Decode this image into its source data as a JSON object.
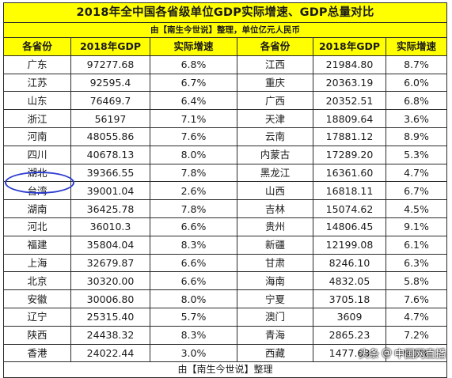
{
  "title": "2018年全中国各省级单位GDP实际增速、GDP总量对比",
  "subtitle": "由【南生今世说】整理，单位亿元人民币",
  "headers": [
    "各省份",
    "2018年GDP",
    "实际增速",
    "各省份",
    "2018年GDP",
    "实际增速"
  ],
  "rows": [
    [
      "广东",
      "97277.68",
      "6.8%",
      "江西",
      "21984.80",
      "8.7%"
    ],
    [
      "江苏",
      "92595.4",
      "6.7%",
      "重庆",
      "20363.19",
      "6.0%"
    ],
    [
      "山东",
      "76469.7",
      "6.4%",
      "广西",
      "20352.51",
      "6.8%"
    ],
    [
      "浙江",
      "56197",
      "7.1%",
      "天津",
      "18809.64",
      "3.6%"
    ],
    [
      "河南",
      "48055.86",
      "7.6%",
      "云南",
      "17881.12",
      "8.9%"
    ],
    [
      "四川",
      "40678.13",
      "8.0%",
      "内蒙古",
      "17289.20",
      "5.3%"
    ],
    [
      "湖北",
      "39366.55",
      "7.8%",
      "黑龙江",
      "16361.60",
      "4.7%"
    ],
    [
      "台湾",
      "39001.04",
      "2.6%",
      "山西",
      "16818.11",
      "6.7%"
    ],
    [
      "湖南",
      "36425.78",
      "7.8%",
      "吉林",
      "15074.62",
      "4.5%"
    ],
    [
      "河北",
      "36010.3",
      "6.6%",
      "贵州",
      "14806.45",
      "9.1%"
    ],
    [
      "福建",
      "35804.04",
      "8.3%",
      "新疆",
      "12199.08",
      "6.1%"
    ],
    [
      "上海",
      "32679.87",
      "6.6%",
      "甘肃",
      "8246.10",
      "6.3%"
    ],
    [
      "北京",
      "30320.00",
      "6.6%",
      "海南",
      "4832.05",
      "5.8%"
    ],
    [
      "安徽",
      "30006.80",
      "8.0%",
      "宁夏",
      "3705.18",
      "7.6%"
    ],
    [
      "辽宁",
      "25315.40",
      "5.7%",
      "澳门",
      "3609",
      "4.7%"
    ],
    [
      "陕西",
      "24438.32",
      "8.3%",
      "青海",
      "2865.23",
      "7.2%"
    ],
    [
      "香港",
      "24022.44",
      "3.0%",
      "西藏",
      "1477.63",
      "9.1%"
    ]
  ],
  "footer": "由【南生今世说】整理",
  "watermark": {
    "at": "@",
    "brand": "头条",
    "account": "中国网直播"
  },
  "colors": {
    "header_bg": "#ffff00",
    "highlight_ring": "#2a3bd0"
  }
}
